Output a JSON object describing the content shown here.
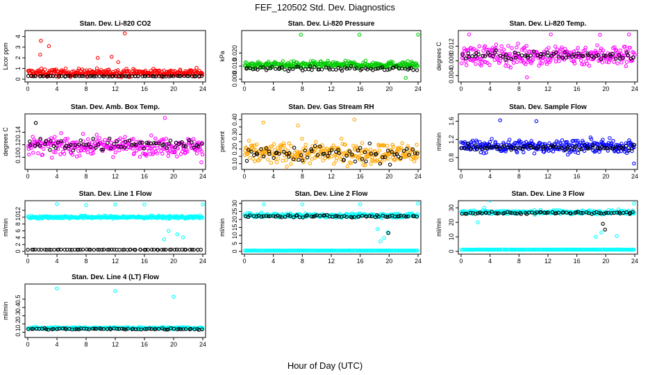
{
  "title": "FEF_120502  Std. Dev. Diagnostics",
  "xlabel": "Hour of Day (UTC)",
  "chart_data": [
    {
      "type": "scatter",
      "title": "Stan. Dev. Li-820 CO2",
      "ylabel": "Licor ppm",
      "xlim": [
        0,
        24
      ],
      "ylim": [
        0,
        4.3
      ],
      "x_ticks": [
        "0",
        "4",
        "8",
        "12",
        "16",
        "20",
        "24"
      ],
      "y_ticks": [
        0,
        1,
        2,
        3,
        4
      ],
      "y_tick_labels": [
        "0",
        "1",
        "2",
        "3",
        "4"
      ],
      "series": [
        {
          "color": "#ff0000",
          "base": 0.6,
          "spread": 0.35,
          "outliers": [
            [
              1.8,
              3.6
            ],
            [
              2.9,
              3.1
            ],
            [
              1.7,
              2.3
            ],
            [
              13.3,
              4.3
            ],
            [
              11.5,
              2.1
            ],
            [
              9.6,
              2.0
            ],
            [
              12.4,
              1.6
            ]
          ],
          "n": 300
        },
        {
          "color": "#000000",
          "base": 0.28,
          "spread": 0.03,
          "outliers": [],
          "n": 70
        }
      ]
    },
    {
      "type": "scatter",
      "title": "Stan. Dev. Li-820 Pressure",
      "ylabel": "kPa",
      "xlim": [
        0,
        24
      ],
      "ylim": [
        0,
        0.035
      ],
      "x_ticks": [
        "0",
        "4",
        "8",
        "12",
        "16",
        "20",
        "24"
      ],
      "y_ticks": [
        0,
        0.01,
        0.02
      ],
      "y_tick_labels": [
        "0.000",
        "0.010",
        "0.020"
      ],
      "series": [
        {
          "color": "#00cc00",
          "base": 0.011,
          "spread": 0.0025,
          "outliers": [
            [
              7.8,
              0.034
            ],
            [
              15.9,
              0.034
            ],
            [
              24,
              0.034
            ],
            [
              22.3,
              0.001
            ]
          ],
          "n": 300
        },
        {
          "color": "#000000",
          "base": 0.008,
          "spread": 0.0015,
          "outliers": [],
          "n": 70
        }
      ]
    },
    {
      "type": "scatter",
      "title": "Stan. Dev. Li-820 Temp.",
      "ylabel": "degrees C",
      "xlim": [
        0,
        24
      ],
      "ylim": [
        0.003,
        0.0155
      ],
      "x_ticks": [
        "0",
        "4",
        "8",
        "12",
        "16",
        "20",
        "24"
      ],
      "y_ticks": [
        0.004,
        0.008,
        0.012
      ],
      "y_tick_labels": [
        "0.004",
        "0.008",
        "0.012"
      ],
      "series": [
        {
          "color": "#ff00ff",
          "base": 0.0095,
          "spread": 0.0028,
          "outliers": [
            [
              1.1,
              0.0152
            ],
            [
              19.2,
              0.0151
            ],
            [
              23.2,
              0.0152
            ],
            [
              12.4,
              0.0152
            ],
            [
              9.1,
              0.0035
            ]
          ],
          "n": 300
        },
        {
          "color": "#000000",
          "base": 0.0095,
          "spread": 0.0012,
          "outliers": [],
          "n": 70
        }
      ]
    },
    {
      "type": "scatter",
      "title": "Stan. Dev. Amb. Box Temp.",
      "ylabel": "degrees C",
      "xlim": [
        0,
        24
      ],
      "ylim": [
        0.085,
        0.165
      ],
      "x_ticks": [
        "0",
        "4",
        "8",
        "12",
        "16",
        "20",
        "24"
      ],
      "y_ticks": [
        0.1,
        0.12,
        0.14
      ],
      "y_tick_labels": [
        "0.10",
        "0.12",
        "0.14"
      ],
      "series": [
        {
          "color": "#ff00ff",
          "base": 0.118,
          "spread": 0.014,
          "outliers": [
            [
              18.8,
              0.163
            ],
            [
              23.8,
              0.092
            ]
          ],
          "n": 300
        },
        {
          "color": "#000000",
          "base": 0.12,
          "spread": 0.01,
          "outliers": [
            [
              1.1,
              0.155
            ]
          ],
          "n": 70
        }
      ]
    },
    {
      "type": "scatter",
      "title": "Stan. Dev. Gas Stream RH",
      "ylabel": "percent",
      "xlim": [
        0,
        24
      ],
      "ylim": [
        0.08,
        0.42
      ],
      "x_ticks": [
        "0",
        "4",
        "8",
        "12",
        "16",
        "20",
        "24"
      ],
      "y_ticks": [
        0.1,
        0.15,
        0.2,
        0.25,
        0.3,
        0.35,
        0.4
      ],
      "y_tick_labels": [
        "0.10",
        "",
        "0.20",
        "",
        "0.30",
        "",
        "0.40"
      ],
      "series": [
        {
          "color": "#ffa500",
          "base": 0.17,
          "spread": 0.07,
          "outliers": [
            [
              2.6,
              0.38
            ],
            [
              15.2,
              0.4
            ],
            [
              7.4,
              0.36
            ]
          ],
          "n": 300
        },
        {
          "color": "#000000",
          "base": 0.17,
          "spread": 0.06,
          "outliers": [],
          "n": 70
        }
      ]
    },
    {
      "type": "scatter",
      "title": "Stan. Dev. Sample Flow",
      "ylabel": "ml/min",
      "xlim": [
        0,
        24
      ],
      "ylim": [
        0.6,
        1.7
      ],
      "x_ticks": [
        "0",
        "4",
        "8",
        "12",
        "16",
        "20",
        "24"
      ],
      "y_ticks": [
        0.8,
        1.2,
        1.6
      ],
      "y_tick_labels": [
        "0.8",
        "1.2",
        "1.6"
      ],
      "series": [
        {
          "color": "#0000ff",
          "base": 1.05,
          "spread": 0.14,
          "outliers": [
            [
              5.4,
              1.62
            ],
            [
              10.4,
              1.6
            ],
            [
              23.9,
              0.67
            ]
          ],
          "n": 300
        },
        {
          "color": "#000000",
          "base": 1.02,
          "spread": 0.06,
          "outliers": [],
          "n": 70
        }
      ]
    },
    {
      "type": "scatter",
      "title": "Stan. Dev. Line 1 Flow",
      "ylabel": "ml/min",
      "xlim": [
        0,
        24
      ],
      "ylim": [
        0,
        14
      ],
      "x_ticks": [
        "0",
        "4",
        "8",
        "12",
        "16",
        "20",
        "24"
      ],
      "y_ticks": [
        0,
        2,
        4,
        6,
        8,
        10,
        12
      ],
      "y_tick_labels": [
        "0",
        "2",
        "4",
        "6",
        "8",
        "10",
        "12"
      ],
      "series": [
        {
          "color": "#00ffff",
          "base": 10,
          "spread": 0.4,
          "outliers": [
            [
              4,
              13.8
            ],
            [
              8,
              13.5
            ],
            [
              12,
              13.7
            ],
            [
              16,
              13.7
            ],
            [
              18.7,
              3.5
            ],
            [
              21.3,
              4.1
            ],
            [
              19.3,
              6
            ],
            [
              20.5,
              5
            ],
            [
              24,
              13.7
            ]
          ],
          "n": 300
        },
        {
          "color": "#000000",
          "base": 0.5,
          "spread": 0.05,
          "outliers": [],
          "n": 70
        }
      ]
    },
    {
      "type": "scatter",
      "title": "Stan. Dev. Line 2 Flow",
      "ylabel": "ml/min",
      "xlim": [
        0,
        24
      ],
      "ylim": [
        0,
        30
      ],
      "x_ticks": [
        "0",
        "4",
        "8",
        "12",
        "16",
        "20",
        "24"
      ],
      "y_ticks": [
        0,
        5,
        10,
        15,
        20,
        25,
        30
      ],
      "y_tick_labels": [
        "0",
        "5",
        "10",
        "15",
        "20",
        "25",
        "30"
      ],
      "series": [
        {
          "color": "#00ffff",
          "base": 22.5,
          "spread": 1.2,
          "outliers": [
            [
              2.7,
              29.5
            ],
            [
              8,
              29.5
            ],
            [
              16,
              29.5
            ],
            [
              24,
              30
            ],
            [
              18.8,
              6.3
            ],
            [
              19.3,
              8.5
            ],
            [
              18.4,
              14
            ],
            [
              19.8,
              12
            ]
          ],
          "n": 300
        },
        {
          "color": "#00ffff",
          "base": 0.5,
          "spread": 0.05,
          "outliers": [],
          "n": 200
        },
        {
          "color": "#000000",
          "base": 22,
          "spread": 0.7,
          "outliers": [
            [
              19.9,
              11.5
            ]
          ],
          "n": 70
        }
      ]
    },
    {
      "type": "scatter",
      "title": "Stan. Dev. Line 3 Flow",
      "ylabel": "ml/min",
      "xlim": [
        0,
        24
      ],
      "ylim": [
        0,
        33
      ],
      "x_ticks": [
        "0",
        "4",
        "8",
        "12",
        "16",
        "20",
        "24"
      ],
      "y_ticks": [
        0,
        10,
        20,
        30
      ],
      "y_tick_labels": [
        "0",
        "10",
        "20",
        "30"
      ],
      "series": [
        {
          "color": "#00ffff",
          "base": 27,
          "spread": 1.3,
          "outliers": [
            [
              2.3,
              20
            ],
            [
              4,
              35
            ],
            [
              3.2,
              30
            ],
            [
              18.6,
              10
            ],
            [
              19.4,
              13
            ],
            [
              21.5,
              10.5
            ],
            [
              23.9,
              33
            ]
          ],
          "n": 300
        },
        {
          "color": "#00ffff",
          "base": 1.2,
          "spread": 0.1,
          "outliers": [],
          "n": 200
        },
        {
          "color": "#000000",
          "base": 26.5,
          "spread": 0.8,
          "outliers": [
            [
              19.9,
              15
            ],
            [
              19.6,
              19
            ]
          ],
          "n": 70
        }
      ]
    },
    {
      "type": "scatter",
      "title": "Stan. Dev. Line 4 (LT) Flow",
      "ylabel": "ml/min",
      "xlim": [
        0,
        24
      ],
      "ylim": [
        0.07,
        0.65
      ],
      "x_ticks": [
        "0",
        "4",
        "8",
        "12",
        "16",
        "20",
        "24"
      ],
      "y_ticks": [
        0.1,
        0.2,
        0.3,
        0.4,
        0.5
      ],
      "y_tick_labels": [
        "0.1",
        "0.2",
        "0.3",
        "0.4",
        "0.5"
      ],
      "series": [
        {
          "color": "#00ffff",
          "base": 0.15,
          "spread": 0.012,
          "outliers": [
            [
              4,
              0.63
            ],
            [
              12,
              0.6
            ],
            [
              20,
              0.53
            ]
          ],
          "n": 300
        },
        {
          "color": "#000000",
          "base": 0.14,
          "spread": 0.01,
          "outliers": [],
          "n": 70
        }
      ]
    }
  ]
}
